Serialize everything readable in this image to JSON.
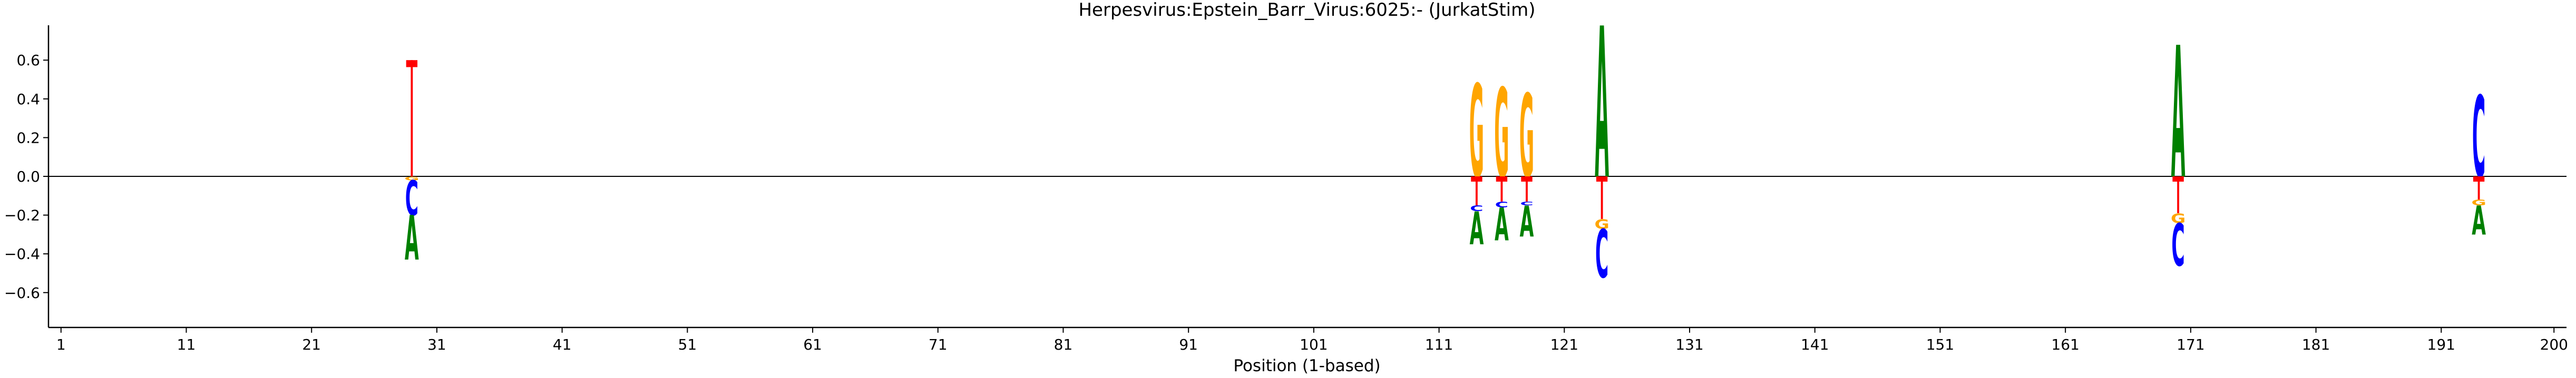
{
  "chart_data": {
    "type": "logo",
    "title": "Herpesvirus:Epstein_Barr_Virus:6025:-  (JurkatStim)",
    "xlabel": "Position (1-based)",
    "ylabel": "",
    "xlim": [
      0,
      201
    ],
    "ylim": [
      -0.78,
      0.78
    ],
    "grid": false,
    "xticks": [
      1,
      11,
      21,
      31,
      41,
      51,
      61,
      71,
      81,
      91,
      101,
      111,
      121,
      131,
      141,
      151,
      161,
      171,
      181,
      191,
      200
    ],
    "yticks": [
      -0.6,
      -0.4,
      -0.2,
      0.0,
      0.2,
      0.4,
      0.6
    ],
    "ytick_labels": [
      "−0.6",
      "−0.4",
      "−0.2",
      "0.0",
      "0.2",
      "0.4",
      "0.6"
    ],
    "colors": {
      "A": "#008000",
      "C": "#0000ff",
      "G": "#ffa500",
      "T": "#ff0000"
    },
    "positions": [
      {
        "pos": 29,
        "letters": [
          {
            "base": "T",
            "value": 0.6
          },
          {
            "base": "G",
            "value": -0.02
          },
          {
            "base": "C",
            "value": -0.2
          },
          {
            "base": "A",
            "value": -0.43
          }
        ]
      },
      {
        "pos": 114,
        "letters": [
          {
            "base": "G",
            "value": 0.48
          },
          {
            "base": "T",
            "value": -0.15
          },
          {
            "base": "C",
            "value": -0.18
          },
          {
            "base": "A",
            "value": -0.35
          }
        ]
      },
      {
        "pos": 116,
        "letters": [
          {
            "base": "G",
            "value": 0.46
          },
          {
            "base": "T",
            "value": -0.13
          },
          {
            "base": "C",
            "value": -0.16
          },
          {
            "base": "A",
            "value": -0.33
          }
        ]
      },
      {
        "pos": 118,
        "letters": [
          {
            "base": "G",
            "value": 0.43
          },
          {
            "base": "T",
            "value": -0.13
          },
          {
            "base": "C",
            "value": -0.15
          },
          {
            "base": "A",
            "value": -0.31
          }
        ]
      },
      {
        "pos": 124,
        "letters": [
          {
            "base": "A",
            "value": 0.78
          },
          {
            "base": "T",
            "value": -0.22
          },
          {
            "base": "G",
            "value": -0.27
          },
          {
            "base": "C",
            "value": -0.52
          }
        ]
      },
      {
        "pos": 170,
        "letters": [
          {
            "base": "A",
            "value": 0.68
          },
          {
            "base": "T",
            "value": -0.19
          },
          {
            "base": "G",
            "value": -0.24
          },
          {
            "base": "C",
            "value": -0.46
          }
        ]
      },
      {
        "pos": 194,
        "letters": [
          {
            "base": "C",
            "value": 0.42
          },
          {
            "base": "T",
            "value": -0.12
          },
          {
            "base": "G",
            "value": -0.15
          },
          {
            "base": "A",
            "value": -0.3
          }
        ]
      }
    ]
  }
}
